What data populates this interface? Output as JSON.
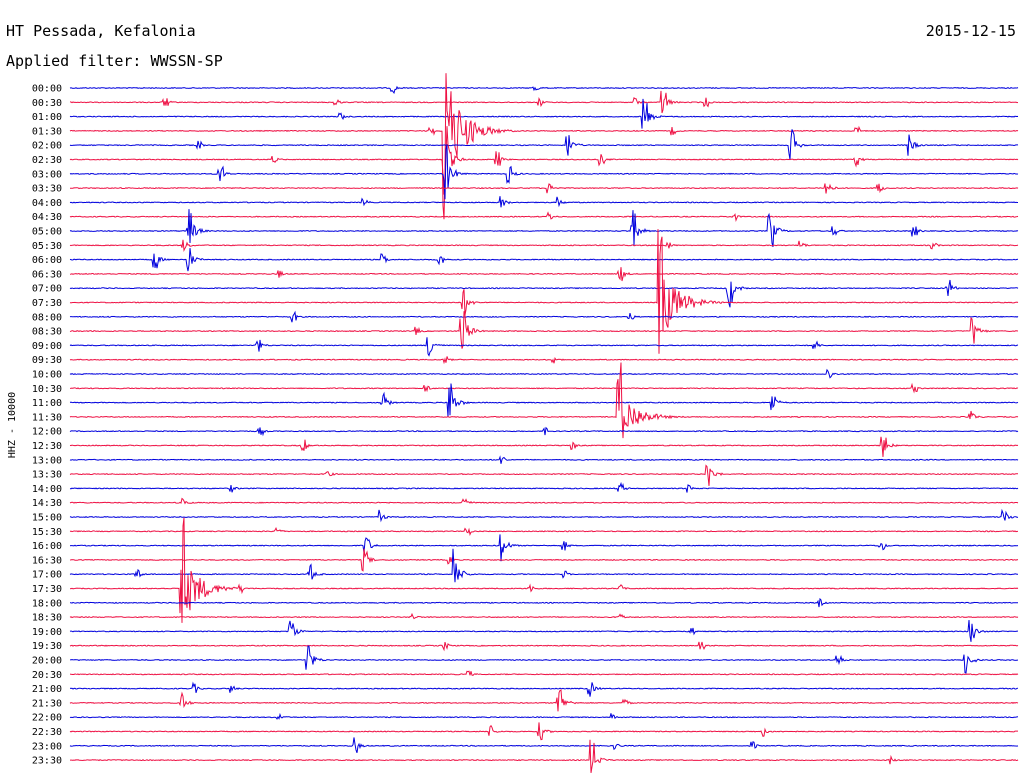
{
  "header": {
    "station": "HT Pessada, Kefalonia",
    "date": "2015-12-15",
    "filter": "Applied filter: WWSSN-SP"
  },
  "chart_data": {
    "type": "line",
    "title": "HT Pessada, Kefalonia",
    "subtitle": "Applied filter: WWSSN-SP",
    "ylabel": "HHZ - 10000",
    "colors": [
      "#0000dd",
      "#ee1144"
    ],
    "grid": false,
    "rows": [
      "00:00",
      "00:30",
      "01:00",
      "01:30",
      "02:00",
      "02:30",
      "03:00",
      "03:30",
      "04:00",
      "04:30",
      "05:00",
      "05:30",
      "06:00",
      "06:30",
      "07:00",
      "07:30",
      "08:00",
      "08:30",
      "09:00",
      "09:30",
      "10:00",
      "10:30",
      "11:00",
      "11:30",
      "12:00",
      "12:30",
      "13:00",
      "13:30",
      "14:00",
      "14:30",
      "15:00",
      "15:30",
      "16:00",
      "16:30",
      "17:00",
      "17:30",
      "18:00",
      "18:30",
      "19:00",
      "19:30",
      "20:00",
      "20:30",
      "21:00",
      "21:30",
      "22:00",
      "22:30",
      "23:00",
      "23:30"
    ],
    "events": [
      {
        "row": 0,
        "x": 0.34,
        "amp": 0.4
      },
      {
        "row": 0,
        "x": 0.49,
        "amp": 0.3
      },
      {
        "row": 1,
        "x": 0.1,
        "amp": 0.35
      },
      {
        "row": 1,
        "x": 0.28,
        "amp": 0.3
      },
      {
        "row": 1,
        "x": 0.495,
        "amp": 0.3
      },
      {
        "row": 1,
        "x": 0.595,
        "amp": 0.4
      },
      {
        "row": 1,
        "x": 0.625,
        "amp": 1.1
      },
      {
        "row": 1,
        "x": 0.67,
        "amp": 0.35
      },
      {
        "row": 2,
        "x": 0.285,
        "amp": 0.3
      },
      {
        "row": 2,
        "x": 0.605,
        "amp": 1.6
      },
      {
        "row": 3,
        "x": 0.38,
        "amp": 0.3
      },
      {
        "row": 3,
        "x": 0.395,
        "amp": 9.0
      },
      {
        "row": 3,
        "x": 0.425,
        "amp": 0.3
      },
      {
        "row": 3,
        "x": 0.635,
        "amp": 0.3
      },
      {
        "row": 3,
        "x": 0.83,
        "amp": 0.3
      },
      {
        "row": 4,
        "x": 0.135,
        "amp": 0.3
      },
      {
        "row": 4,
        "x": 0.525,
        "amp": 1.0
      },
      {
        "row": 4,
        "x": 0.76,
        "amp": 1.3
      },
      {
        "row": 4,
        "x": 0.885,
        "amp": 0.9
      },
      {
        "row": 5,
        "x": 0.215,
        "amp": 0.3
      },
      {
        "row": 5,
        "x": 0.395,
        "amp": 3.0
      },
      {
        "row": 5,
        "x": 0.45,
        "amp": 0.6
      },
      {
        "row": 5,
        "x": 0.56,
        "amp": 0.4
      },
      {
        "row": 5,
        "x": 0.828,
        "amp": 0.5
      },
      {
        "row": 6,
        "x": 0.158,
        "amp": 0.7
      },
      {
        "row": 6,
        "x": 0.395,
        "amp": 2.5
      },
      {
        "row": 6,
        "x": 0.462,
        "amp": 0.7
      },
      {
        "row": 7,
        "x": 0.505,
        "amp": 0.4
      },
      {
        "row": 7,
        "x": 0.798,
        "amp": 0.6
      },
      {
        "row": 7,
        "x": 0.853,
        "amp": 0.4
      },
      {
        "row": 8,
        "x": 0.31,
        "amp": 0.3
      },
      {
        "row": 8,
        "x": 0.455,
        "amp": 0.5
      },
      {
        "row": 8,
        "x": 0.515,
        "amp": 0.4
      },
      {
        "row": 9,
        "x": 0.505,
        "amp": 0.3
      },
      {
        "row": 9,
        "x": 0.7,
        "amp": 0.3
      },
      {
        "row": 10,
        "x": 0.125,
        "amp": 1.9
      },
      {
        "row": 10,
        "x": 0.593,
        "amp": 1.6
      },
      {
        "row": 10,
        "x": 0.738,
        "amp": 1.6
      },
      {
        "row": 10,
        "x": 0.805,
        "amp": 0.4
      },
      {
        "row": 10,
        "x": 0.89,
        "amp": 0.4
      },
      {
        "row": 11,
        "x": 0.12,
        "amp": 0.4
      },
      {
        "row": 11,
        "x": 0.63,
        "amp": 0.3
      },
      {
        "row": 11,
        "x": 0.77,
        "amp": 0.4
      },
      {
        "row": 11,
        "x": 0.91,
        "amp": 0.3
      },
      {
        "row": 12,
        "x": 0.088,
        "amp": 0.9
      },
      {
        "row": 12,
        "x": 0.125,
        "amp": 1.0
      },
      {
        "row": 12,
        "x": 0.33,
        "amp": 0.4
      },
      {
        "row": 12,
        "x": 0.39,
        "amp": 0.4
      },
      {
        "row": 13,
        "x": 0.22,
        "amp": 0.3
      },
      {
        "row": 13,
        "x": 0.58,
        "amp": 0.6
      },
      {
        "row": 14,
        "x": 0.695,
        "amp": 1.5
      },
      {
        "row": 14,
        "x": 0.925,
        "amp": 0.8
      },
      {
        "row": 15,
        "x": 0.415,
        "amp": 1.0
      },
      {
        "row": 15,
        "x": 0.622,
        "amp": 6.0
      },
      {
        "row": 16,
        "x": 0.235,
        "amp": 0.4
      },
      {
        "row": 16,
        "x": 0.59,
        "amp": 0.3
      },
      {
        "row": 17,
        "x": 0.413,
        "amp": 2.3
      },
      {
        "row": 17,
        "x": 0.365,
        "amp": 0.3
      },
      {
        "row": 17,
        "x": 0.952,
        "amp": 1.2
      },
      {
        "row": 18,
        "x": 0.198,
        "amp": 0.5
      },
      {
        "row": 18,
        "x": 0.378,
        "amp": 1.0
      },
      {
        "row": 18,
        "x": 0.785,
        "amp": 0.4
      },
      {
        "row": 19,
        "x": 0.395,
        "amp": 0.3
      },
      {
        "row": 19,
        "x": 0.51,
        "amp": 0.3
      },
      {
        "row": 20,
        "x": 0.8,
        "amp": 0.4
      },
      {
        "row": 21,
        "x": 0.375,
        "amp": 0.3
      },
      {
        "row": 21,
        "x": 0.89,
        "amp": 0.3
      },
      {
        "row": 22,
        "x": 0.33,
        "amp": 0.7
      },
      {
        "row": 22,
        "x": 0.4,
        "amp": 2.0
      },
      {
        "row": 22,
        "x": 0.74,
        "amp": 0.8
      },
      {
        "row": 23,
        "x": 0.578,
        "amp": 4.5
      },
      {
        "row": 23,
        "x": 0.95,
        "amp": 0.5
      },
      {
        "row": 24,
        "x": 0.2,
        "amp": 0.3
      },
      {
        "row": 24,
        "x": 0.5,
        "amp": 0.3
      },
      {
        "row": 25,
        "x": 0.245,
        "amp": 0.5
      },
      {
        "row": 25,
        "x": 0.53,
        "amp": 0.3
      },
      {
        "row": 25,
        "x": 0.857,
        "amp": 0.9
      },
      {
        "row": 26,
        "x": 0.455,
        "amp": 0.3
      },
      {
        "row": 27,
        "x": 0.27,
        "amp": 0.4
      },
      {
        "row": 27,
        "x": 0.672,
        "amp": 1.2
      },
      {
        "row": 28,
        "x": 0.17,
        "amp": 0.3
      },
      {
        "row": 28,
        "x": 0.58,
        "amp": 0.4
      },
      {
        "row": 28,
        "x": 0.652,
        "amp": 0.3
      },
      {
        "row": 29,
        "x": 0.415,
        "amp": 0.5
      },
      {
        "row": 29,
        "x": 0.12,
        "amp": 0.3
      },
      {
        "row": 30,
        "x": 0.327,
        "amp": 0.5
      },
      {
        "row": 30,
        "x": 0.985,
        "amp": 0.6
      },
      {
        "row": 31,
        "x": 0.218,
        "amp": 0.3
      },
      {
        "row": 31,
        "x": 0.418,
        "amp": 0.3
      },
      {
        "row": 32,
        "x": 0.312,
        "amp": 0.8
      },
      {
        "row": 32,
        "x": 0.455,
        "amp": 1.2
      },
      {
        "row": 32,
        "x": 0.52,
        "amp": 0.4
      },
      {
        "row": 32,
        "x": 0.855,
        "amp": 0.4
      },
      {
        "row": 33,
        "x": 0.31,
        "amp": 0.8
      },
      {
        "row": 33,
        "x": 0.4,
        "amp": 0.3
      },
      {
        "row": 34,
        "x": 0.07,
        "amp": 0.4
      },
      {
        "row": 34,
        "x": 0.252,
        "amp": 0.8
      },
      {
        "row": 34,
        "x": 0.405,
        "amp": 2.0
      },
      {
        "row": 34,
        "x": 0.52,
        "amp": 0.3
      },
      {
        "row": 35,
        "x": 0.117,
        "amp": 5.5
      },
      {
        "row": 35,
        "x": 0.18,
        "amp": 0.3
      },
      {
        "row": 35,
        "x": 0.485,
        "amp": 0.3
      },
      {
        "row": 35,
        "x": 0.58,
        "amp": 0.3
      },
      {
        "row": 36,
        "x": 0.79,
        "amp": 0.3
      },
      {
        "row": 37,
        "x": 0.36,
        "amp": 0.3
      },
      {
        "row": 37,
        "x": 0.58,
        "amp": 0.3
      },
      {
        "row": 38,
        "x": 0.232,
        "amp": 1.1
      },
      {
        "row": 38,
        "x": 0.655,
        "amp": 0.3
      },
      {
        "row": 38,
        "x": 0.95,
        "amp": 1.0
      },
      {
        "row": 39,
        "x": 0.395,
        "amp": 0.3
      },
      {
        "row": 39,
        "x": 0.665,
        "amp": 0.3
      },
      {
        "row": 40,
        "x": 0.25,
        "amp": 1.6
      },
      {
        "row": 40,
        "x": 0.81,
        "amp": 0.4
      },
      {
        "row": 40,
        "x": 0.945,
        "amp": 1.0
      },
      {
        "row": 41,
        "x": 0.42,
        "amp": 0.3
      },
      {
        "row": 42,
        "x": 0.13,
        "amp": 0.4
      },
      {
        "row": 42,
        "x": 0.17,
        "amp": 0.3
      },
      {
        "row": 42,
        "x": 0.548,
        "amp": 0.6
      },
      {
        "row": 43,
        "x": 0.117,
        "amp": 0.8
      },
      {
        "row": 43,
        "x": 0.515,
        "amp": 1.6
      },
      {
        "row": 43,
        "x": 0.585,
        "amp": 0.3
      },
      {
        "row": 44,
        "x": 0.22,
        "amp": 0.3
      },
      {
        "row": 44,
        "x": 0.572,
        "amp": 0.3
      },
      {
        "row": 45,
        "x": 0.442,
        "amp": 0.5
      },
      {
        "row": 45,
        "x": 0.495,
        "amp": 0.7
      },
      {
        "row": 45,
        "x": 0.73,
        "amp": 0.4
      },
      {
        "row": 46,
        "x": 0.3,
        "amp": 0.6
      },
      {
        "row": 46,
        "x": 0.575,
        "amp": 0.3
      },
      {
        "row": 46,
        "x": 0.72,
        "amp": 0.3
      },
      {
        "row": 47,
        "x": 0.55,
        "amp": 1.5
      },
      {
        "row": 47,
        "x": 0.865,
        "amp": 0.3
      }
    ]
  }
}
